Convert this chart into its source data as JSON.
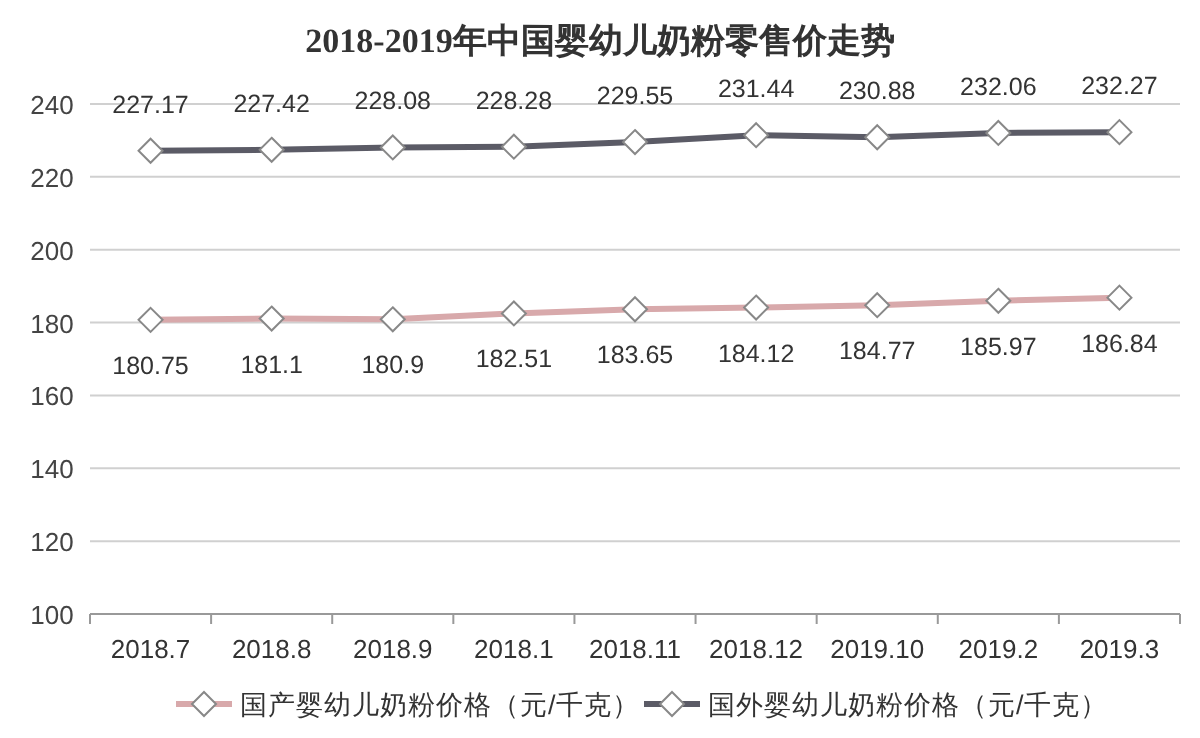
{
  "chart_data": {
    "type": "line",
    "title": "2018-2019年中国婴幼儿奶粉零售价走势",
    "categories": [
      "2018.7",
      "2018.8",
      "2018.9",
      "2018.1",
      "2018.11",
      "2018.12",
      "2019.10",
      "2019.2",
      "2019.3"
    ],
    "series": [
      {
        "name": "国产婴幼儿奶粉价格（元/千克）",
        "color": "#d8a9ab",
        "values": [
          180.75,
          181.1,
          180.9,
          182.51,
          183.65,
          184.12,
          184.77,
          185.97,
          186.84
        ]
      },
      {
        "name": "国外婴幼儿奶粉价格（元/千克）",
        "color": "#5b5b66",
        "values": [
          227.17,
          227.42,
          228.08,
          228.28,
          229.55,
          231.44,
          230.88,
          232.06,
          232.27
        ]
      }
    ],
    "ylim": [
      100,
      240
    ],
    "yticks": [
      100,
      120,
      140,
      160,
      180,
      200,
      220,
      240
    ],
    "grid": "y",
    "legend": "bottom",
    "marker": "diamond",
    "line_style": "solid",
    "data_labels": true
  }
}
